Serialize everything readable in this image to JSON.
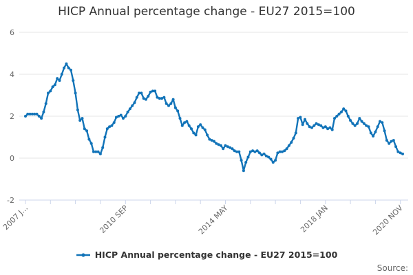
{
  "page": {
    "title": "HICP Annual percentage change - EU27 2015=100"
  },
  "legend": {
    "label": "HICP Annual percentage change - EU27 2015=100"
  },
  "footer": {
    "source": "Source:"
  },
  "colors": {
    "series": "#1173b8",
    "grid": "#e6e6e6",
    "axis": "#ccd6eb",
    "tick_label": "#666666",
    "title_text": "#333333"
  },
  "chart_data": {
    "type": "line",
    "title": "HICP Annual percentage change - EU27 2015=100",
    "xlabel": "",
    "ylabel": "",
    "ylim": [
      -2,
      6
    ],
    "y_ticks": [
      6,
      4,
      2,
      0,
      -2
    ],
    "grid": "horizontal",
    "legend_position": "bottom",
    "x_unit": "month",
    "x_start": "2007-01",
    "x_end": "2020-11",
    "minor_tick_interval_months": 11,
    "x_tick_labels": [
      {
        "month_index": 0,
        "label": "2007 J..."
      },
      {
        "month_index": 44,
        "label": "2010 SEP"
      },
      {
        "month_index": 88,
        "label": "2014 MAY"
      },
      {
        "month_index": 132,
        "label": "2018 JAN"
      },
      {
        "month_index": 165,
        "label": "2020 NOV"
      }
    ],
    "series": [
      {
        "name": "HICP Annual percentage change - EU27 2015=100",
        "color": "#1173b8",
        "values": [
          2.0,
          2.1,
          2.1,
          2.1,
          2.1,
          2.1,
          2.0,
          1.9,
          2.2,
          2.6,
          3.1,
          3.2,
          3.4,
          3.5,
          3.8,
          3.7,
          4.0,
          4.3,
          4.5,
          4.3,
          4.2,
          3.7,
          3.1,
          2.3,
          1.8,
          1.9,
          1.4,
          1.3,
          0.9,
          0.7,
          0.3,
          0.3,
          0.3,
          0.2,
          0.5,
          1.0,
          1.4,
          1.5,
          1.55,
          1.7,
          1.95,
          2.0,
          2.05,
          1.9,
          2.0,
          2.2,
          2.35,
          2.5,
          2.65,
          2.9,
          3.1,
          3.1,
          2.85,
          2.8,
          2.95,
          3.15,
          3.2,
          3.2,
          2.9,
          2.85,
          2.85,
          2.9,
          2.6,
          2.5,
          2.6,
          2.8,
          2.4,
          2.25,
          1.9,
          1.55,
          1.7,
          1.75,
          1.55,
          1.4,
          1.2,
          1.1,
          1.5,
          1.6,
          1.45,
          1.35,
          1.1,
          0.9,
          0.85,
          0.8,
          0.7,
          0.65,
          0.6,
          0.45,
          0.6,
          0.55,
          0.5,
          0.45,
          0.35,
          0.3,
          0.3,
          -0.1,
          -0.6,
          -0.2,
          0.05,
          0.3,
          0.35,
          0.3,
          0.35,
          0.25,
          0.15,
          0.2,
          0.1,
          0.05,
          -0.05,
          -0.2,
          -0.1,
          0.25,
          0.3,
          0.3,
          0.35,
          0.45,
          0.6,
          0.75,
          0.95,
          1.2,
          1.9,
          1.95,
          1.6,
          1.85,
          1.65,
          1.5,
          1.45,
          1.55,
          1.65,
          1.6,
          1.55,
          1.45,
          1.5,
          1.4,
          1.45,
          1.35,
          1.9,
          2.0,
          2.1,
          2.2,
          2.35,
          2.25,
          2.0,
          1.8,
          1.65,
          1.55,
          1.65,
          1.9,
          1.75,
          1.65,
          1.55,
          1.5,
          1.2,
          1.05,
          1.25,
          1.5,
          1.75,
          1.7,
          1.3,
          0.85,
          0.7,
          0.8,
          0.85,
          0.55,
          0.3,
          0.25,
          0.2
        ]
      }
    ]
  }
}
